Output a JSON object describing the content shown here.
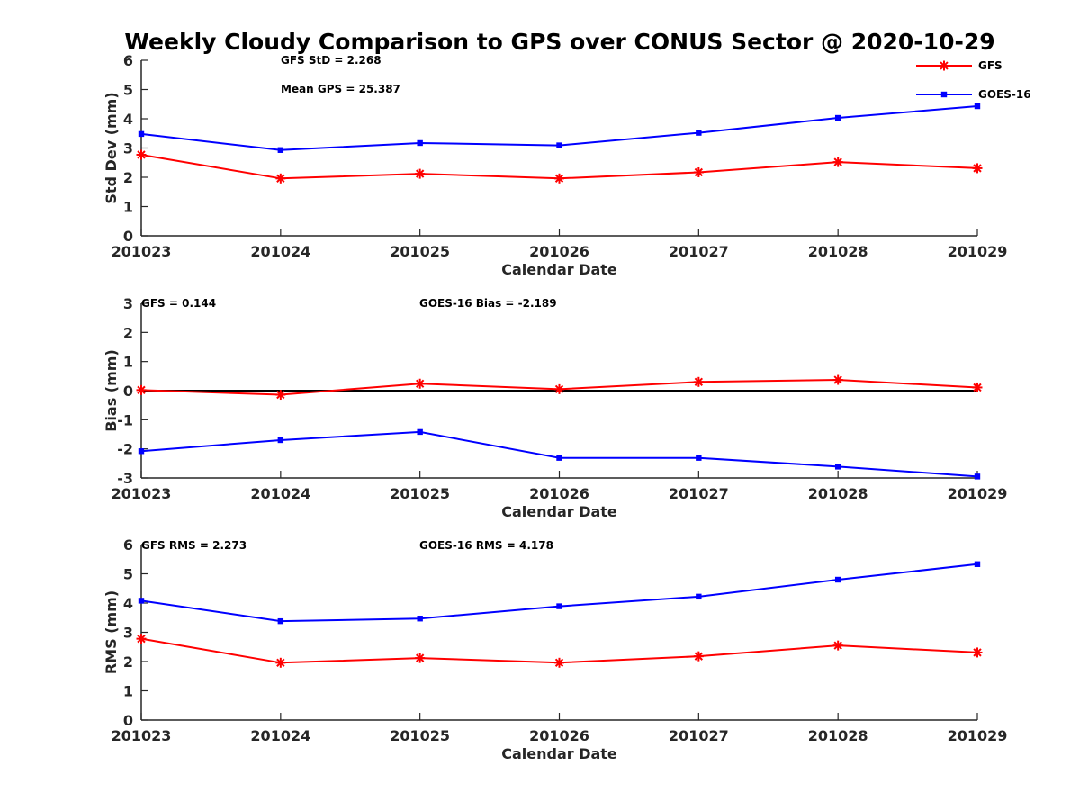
{
  "figure_title": "Weekly Cloudy Comparison to GPS over CONUS Sector @ 2020-10-29",
  "colors": {
    "GFS": "#ff0000",
    "GOES-16": "#0000ff",
    "zero_line": "#000000"
  },
  "legend": {
    "placement": "top-right",
    "entries": [
      "GFS",
      "GOES-16"
    ]
  },
  "chart_data": [
    {
      "type": "line",
      "xlabel": "Calendar Date",
      "ylabel": "Std Dev (mm)",
      "ylim": [
        0,
        6
      ],
      "yticks": [
        "0",
        "1",
        "2",
        "3",
        "4",
        "5",
        "6"
      ],
      "categories": [
        "201023",
        "201024",
        "201025",
        "201026",
        "201027",
        "201028",
        "201029"
      ],
      "annotations": [
        "GFS StD = 2.268",
        "Mean GPS = 25.387"
      ],
      "series": [
        {
          "name": "GFS",
          "marker": "asterisk",
          "values": [
            2.77,
            1.96,
            2.12,
            1.96,
            2.17,
            2.52,
            2.31
          ]
        },
        {
          "name": "GOES-16",
          "marker": "square",
          "values": [
            3.48,
            2.93,
            3.17,
            3.09,
            3.52,
            4.03,
            4.43
          ]
        }
      ]
    },
    {
      "type": "line",
      "xlabel": "Calendar Date",
      "ylabel": "Bias (mm)",
      "ylim": [
        -3,
        3
      ],
      "yticks": [
        "-3",
        "-2",
        "-1",
        "0",
        "1",
        "2",
        "3"
      ],
      "categories": [
        "201023",
        "201024",
        "201025",
        "201026",
        "201027",
        "201028",
        "201029"
      ],
      "annotations": [
        "GFS = 0.144",
        "GOES-16 Bias  = -2.189"
      ],
      "zero_line": true,
      "series": [
        {
          "name": "GFS",
          "marker": "asterisk",
          "values": [
            0.02,
            -0.14,
            0.24,
            0.05,
            0.3,
            0.37,
            0.11
          ]
        },
        {
          "name": "GOES-16",
          "marker": "square",
          "values": [
            -2.08,
            -1.7,
            -1.42,
            -2.31,
            -2.31,
            -2.61,
            -2.95
          ]
        }
      ]
    },
    {
      "type": "line",
      "xlabel": "Calendar Date",
      "ylabel": "RMS (mm)",
      "ylim": [
        0,
        6
      ],
      "yticks": [
        "0",
        "1",
        "2",
        "3",
        "4",
        "5",
        "6"
      ],
      "categories": [
        "201023",
        "201024",
        "201025",
        "201026",
        "201027",
        "201028",
        "201029"
      ],
      "annotations": [
        "GFS RMS = 2.273",
        "GOES-16 RMS = 4.178"
      ],
      "series": [
        {
          "name": "GFS",
          "marker": "asterisk",
          "values": [
            2.78,
            1.96,
            2.12,
            1.96,
            2.18,
            2.55,
            2.31
          ]
        },
        {
          "name": "GOES-16",
          "marker": "square",
          "values": [
            4.08,
            3.38,
            3.47,
            3.89,
            4.22,
            4.8,
            5.33
          ]
        }
      ]
    }
  ]
}
